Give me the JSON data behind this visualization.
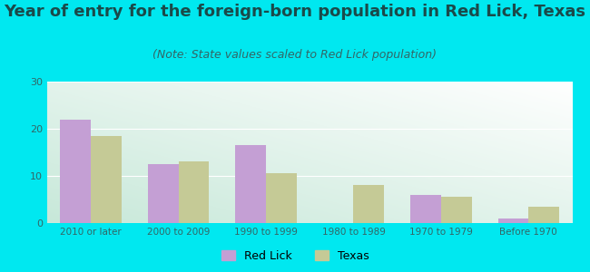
{
  "title": "Year of entry for the foreign-born population in Red Lick, Texas",
  "subtitle": "(Note: State values scaled to Red Lick population)",
  "categories": [
    "2010 or later",
    "2000 to 2009",
    "1990 to 1999",
    "1980 to 1989",
    "1970 to 1979",
    "Before 1970"
  ],
  "red_lick_values": [
    22,
    12.5,
    16.5,
    0,
    6,
    1
  ],
  "texas_values": [
    18.5,
    13,
    10.5,
    8,
    5.5,
    3.5
  ],
  "red_lick_color": "#c49fd4",
  "texas_color": "#c5ca96",
  "ylim": [
    0,
    30
  ],
  "yticks": [
    0,
    10,
    20,
    30
  ],
  "background_outer": "#00e8f0",
  "title_fontsize": 13,
  "subtitle_fontsize": 9,
  "legend_label_red_lick": "Red Lick",
  "legend_label_texas": "Texas",
  "bar_width": 0.35
}
